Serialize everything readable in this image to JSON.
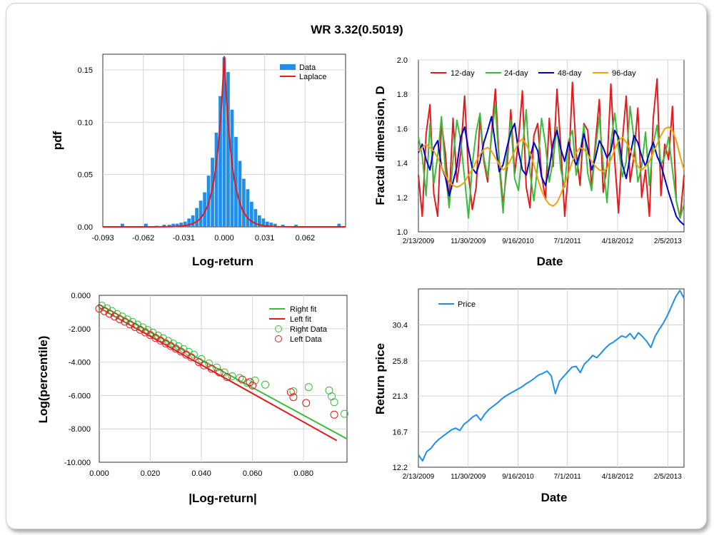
{
  "title": "WR 3.32(0.5019)",
  "charts": {
    "hist": {
      "xlabel": "Log-return",
      "ylabel": "pdf",
      "xticks": [
        "-0.093",
        "-0.062",
        "-0.031",
        "0.000",
        "0.031",
        "0.062"
      ],
      "yticks": [
        "0.00",
        "0.05",
        "0.10",
        "0.15"
      ],
      "legend": [
        "Data",
        "Laplace"
      ]
    },
    "fractal": {
      "xlabel": "Date",
      "ylabel": "Fractal dimension, D",
      "xticks": [
        "2/13/2009",
        "11/30/2009",
        "9/16/2010",
        "7/1/2011",
        "4/18/2012",
        "2/5/2013"
      ],
      "yticks": [
        "1.0",
        "1.2",
        "1.4",
        "1.6",
        "1.8",
        "2.0"
      ],
      "legend": [
        "12-day",
        "24-day",
        "48-day",
        "96-day"
      ]
    },
    "tail": {
      "xlabel": "|Log-return|",
      "ylabel": "Log(percentile)",
      "xticks": [
        "0.000",
        "0.020",
        "0.040",
        "0.060",
        "0.080"
      ],
      "yticks": [
        "0.000",
        "-2.000",
        "-4.000",
        "-6.000",
        "-8.000",
        "-10.000"
      ],
      "legend": [
        "Right fit",
        "Left fit",
        "Right Data",
        "Left Data"
      ]
    },
    "price": {
      "xlabel": "Date",
      "ylabel": "Return price",
      "xticks": [
        "2/13/2009",
        "11/30/2009",
        "9/16/2010",
        "7/1/2011",
        "4/18/2012",
        "2/5/2013"
      ],
      "yticks": [
        "12.2",
        "16.7",
        "21.3",
        "25.8",
        "30.4"
      ],
      "legend": [
        "Price"
      ]
    }
  },
  "chart_data": [
    {
      "type": "bar",
      "title": "WR 3.32(0.5019)",
      "xlabel": "Log-return",
      "ylabel": "pdf",
      "xlim": [
        -0.093,
        0.093
      ],
      "ylim": [
        0,
        0.165
      ],
      "series": [
        {
          "name": "Data",
          "x": [
            -0.078,
            -0.06,
            -0.052,
            -0.046,
            -0.042,
            -0.039,
            -0.036,
            -0.033,
            -0.03,
            -0.027,
            -0.024,
            -0.021,
            -0.018,
            -0.015,
            -0.012,
            -0.009,
            -0.006,
            -0.003,
            0.0,
            0.003,
            0.006,
            0.009,
            0.012,
            0.015,
            0.018,
            0.021,
            0.024,
            0.027,
            0.03,
            0.033,
            0.036,
            0.039,
            0.045,
            0.055,
            0.088
          ],
          "values": [
            0.003,
            0.003,
            0.001,
            0.002,
            0.002,
            0.003,
            0.003,
            0.004,
            0.005,
            0.008,
            0.011,
            0.018,
            0.025,
            0.033,
            0.049,
            0.066,
            0.09,
            0.125,
            0.162,
            0.148,
            0.112,
            0.086,
            0.063,
            0.046,
            0.036,
            0.024,
            0.017,
            0.011,
            0.008,
            0.005,
            0.004,
            0.003,
            0.002,
            0.002,
            0.003
          ]
        },
        {
          "name": "Laplace",
          "type": "line",
          "location": 0.0,
          "peak": 0.163,
          "scale": 0.0061
        }
      ]
    },
    {
      "type": "line",
      "xlabel": "Date",
      "ylabel": "Fractal dimension, D",
      "x_start": "2/13/2009",
      "x_end": "5/10/2013",
      "ylim": [
        1.0,
        2.0
      ],
      "series": [
        {
          "name": "12-day",
          "color": "#e41a1c",
          "values": [
            1.33,
            1.09,
            1.57,
            1.74,
            1.22,
            1.09,
            1.63,
            1.46,
            1.18,
            1.66,
            1.29,
            1.46,
            1.79,
            1.34,
            1.13,
            1.26,
            1.66,
            1.41,
            1.29,
            1.57,
            1.83,
            1.41,
            1.16,
            1.37,
            1.71,
            1.34,
            1.53,
            1.82,
            1.26,
            1.14,
            1.56,
            1.63,
            1.33,
            1.19,
            1.66,
            1.38,
            1.83,
            1.49,
            1.09,
            1.36,
            1.87,
            1.46,
            1.27,
            1.63,
            1.59,
            1.26,
            1.52,
            1.77,
            1.23,
            1.39,
            1.86,
            1.41,
            1.11,
            1.53,
            1.79,
            1.29,
            1.44,
            1.72,
            1.2,
            1.36,
            1.09,
            1.66,
            1.89,
            1.21,
            1.51,
            1.42,
            1.73,
            1.18,
            1.08,
            1.33
          ]
        },
        {
          "name": "24-day",
          "color": "#3cbc3c",
          "values": [
            1.55,
            1.44,
            1.21,
            1.63,
            1.28,
            1.44,
            1.67,
            1.36,
            1.14,
            1.42,
            1.65,
            1.53,
            1.31,
            1.08,
            1.39,
            1.58,
            1.69,
            1.43,
            1.32,
            1.55,
            1.74,
            1.38,
            1.11,
            1.45,
            1.65,
            1.31,
            1.24,
            1.48,
            1.71,
            1.35,
            1.18,
            1.39,
            1.66,
            1.51,
            1.29,
            1.42,
            1.61,
            1.36,
            1.26,
            1.53,
            1.59,
            1.33,
            1.45,
            1.62,
            1.34,
            1.24,
            1.48,
            1.67,
            1.39,
            1.17,
            1.52,
            1.69,
            1.49,
            1.32,
            1.41,
            1.73,
            1.54,
            1.29,
            1.38,
            1.58,
            1.27,
            1.51,
            1.62,
            1.39,
            1.44,
            1.55,
            1.36,
            1.18,
            1.08,
            1.16
          ]
        },
        {
          "name": "48-day",
          "color": "#0000cc",
          "values": [
            1.46,
            1.51,
            1.42,
            1.36,
            1.49,
            1.53,
            1.38,
            1.32,
            1.21,
            1.29,
            1.38,
            1.55,
            1.61,
            1.48,
            1.37,
            1.34,
            1.41,
            1.52,
            1.59,
            1.67,
            1.51,
            1.35,
            1.39,
            1.49,
            1.58,
            1.63,
            1.47,
            1.36,
            1.33,
            1.43,
            1.52,
            1.47,
            1.32,
            1.27,
            1.37,
            1.52,
            1.59,
            1.48,
            1.41,
            1.52,
            1.44,
            1.39,
            1.46,
            1.57,
            1.48,
            1.36,
            1.43,
            1.53,
            1.49,
            1.43,
            1.47,
            1.59,
            1.55,
            1.39,
            1.31,
            1.44,
            1.56,
            1.52,
            1.44,
            1.38,
            1.46,
            1.52,
            1.44,
            1.39,
            1.31,
            1.23,
            1.16,
            1.09,
            1.06,
            1.04
          ]
        },
        {
          "name": "96-day",
          "color": "#f0a30a",
          "values": [
            1.47,
            1.49,
            1.51,
            1.49,
            1.47,
            1.43,
            1.38,
            1.33,
            1.29,
            1.27,
            1.26,
            1.27,
            1.29,
            1.33,
            1.36,
            1.41,
            1.45,
            1.48,
            1.49,
            1.47,
            1.43,
            1.39,
            1.36,
            1.38,
            1.42,
            1.47,
            1.52,
            1.54,
            1.51,
            1.46,
            1.39,
            1.31,
            1.24,
            1.19,
            1.16,
            1.15,
            1.17,
            1.22,
            1.28,
            1.34,
            1.41,
            1.46,
            1.49,
            1.48,
            1.45,
            1.41,
            1.38,
            1.36,
            1.35,
            1.37,
            1.42,
            1.48,
            1.53,
            1.55,
            1.52,
            1.48,
            1.42,
            1.38,
            1.36,
            1.38,
            1.41,
            1.46,
            1.51,
            1.56,
            1.6,
            1.61,
            1.59,
            1.53,
            1.44,
            1.36
          ]
        }
      ]
    },
    {
      "type": "scatter",
      "xlabel": "|Log-return|",
      "ylabel": "Log(percentile)",
      "xlim": [
        0,
        0.097
      ],
      "ylim": [
        -10,
        0
      ],
      "series": [
        {
          "name": "Right fit",
          "type": "line",
          "x": [
            0.0,
            0.097
          ],
          "y": [
            -0.55,
            -8.6
          ]
        },
        {
          "name": "Left fit",
          "type": "line",
          "x": [
            0.0,
            0.093
          ],
          "y": [
            -0.75,
            -8.7
          ]
        },
        {
          "name": "Right Data",
          "x": [
            0.001,
            0.003,
            0.005,
            0.007,
            0.009,
            0.011,
            0.013,
            0.015,
            0.017,
            0.019,
            0.021,
            0.023,
            0.025,
            0.027,
            0.029,
            0.031,
            0.033,
            0.035,
            0.037,
            0.04,
            0.043,
            0.046,
            0.049,
            0.052,
            0.055,
            0.058,
            0.061,
            0.065,
            0.076,
            0.082,
            0.09,
            0.091,
            0.092,
            0.096
          ],
          "y": [
            -0.62,
            -0.78,
            -0.94,
            -1.12,
            -1.27,
            -1.44,
            -1.59,
            -1.76,
            -1.92,
            -2.08,
            -2.24,
            -2.41,
            -2.57,
            -2.73,
            -2.89,
            -3.05,
            -3.22,
            -3.38,
            -3.55,
            -3.82,
            -4.08,
            -4.32,
            -4.62,
            -4.85,
            -4.95,
            -5.25,
            -5.1,
            -5.35,
            -5.75,
            -5.5,
            -5.7,
            -6.05,
            -6.4,
            -7.1
          ]
        },
        {
          "name": "Left Data",
          "x": [
            0.0,
            0.002,
            0.004,
            0.006,
            0.008,
            0.01,
            0.012,
            0.014,
            0.016,
            0.018,
            0.02,
            0.022,
            0.024,
            0.026,
            0.028,
            0.03,
            0.032,
            0.034,
            0.036,
            0.039,
            0.041,
            0.044,
            0.047,
            0.05,
            0.056,
            0.059,
            0.06,
            0.075,
            0.076,
            0.081,
            0.092
          ],
          "y": [
            -0.8,
            -0.95,
            -1.1,
            -1.27,
            -1.43,
            -1.58,
            -1.74,
            -1.9,
            -2.06,
            -2.22,
            -2.38,
            -2.55,
            -2.71,
            -2.88,
            -3.04,
            -3.2,
            -3.37,
            -3.55,
            -3.72,
            -4.0,
            -4.2,
            -4.4,
            -4.62,
            -4.9,
            -5.05,
            -5.2,
            -5.4,
            -5.8,
            -6.1,
            -6.45,
            -7.15
          ]
        }
      ]
    },
    {
      "type": "line",
      "xlabel": "Date",
      "ylabel": "Return price",
      "x_start": "2/13/2009",
      "x_end": "5/10/2013",
      "ylim": [
        12.2,
        35.0
      ],
      "series": [
        {
          "name": "Price",
          "color": "#1f8fea",
          "values": [
            13.8,
            13.0,
            14.2,
            14.6,
            15.3,
            15.8,
            16.2,
            16.6,
            17.0,
            17.2,
            16.9,
            17.7,
            18.1,
            18.6,
            18.9,
            18.2,
            19.0,
            19.6,
            20.0,
            20.4,
            20.9,
            21.3,
            21.6,
            21.9,
            22.2,
            22.5,
            22.9,
            23.2,
            23.6,
            24.0,
            24.2,
            24.5,
            23.9,
            21.6,
            23.2,
            23.8,
            24.4,
            25.0,
            25.1,
            24.3,
            25.4,
            25.9,
            26.5,
            26.2,
            26.8,
            27.4,
            27.9,
            28.2,
            28.6,
            29.0,
            28.8,
            29.3,
            28.6,
            29.4,
            28.9,
            28.3,
            27.5,
            28.9,
            29.8,
            30.6,
            31.6,
            32.8,
            34.0,
            34.8,
            33.8
          ]
        }
      ]
    }
  ]
}
